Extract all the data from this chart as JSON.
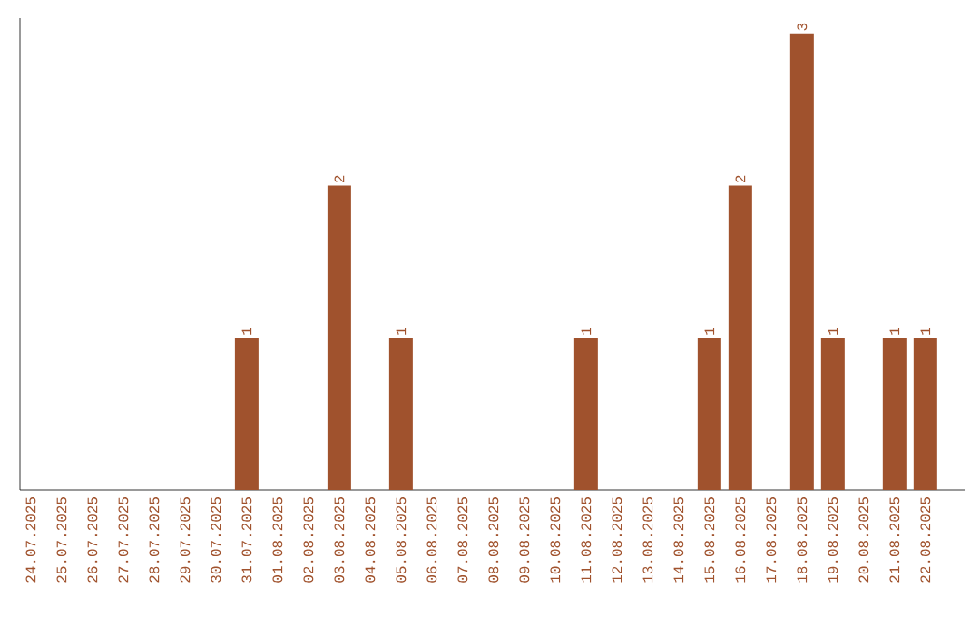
{
  "chart_data": {
    "type": "bar",
    "categories": [
      "24.07.2025",
      "25.07.2025",
      "26.07.2025",
      "27.07.2025",
      "28.07.2025",
      "29.07.2025",
      "30.07.2025",
      "31.07.2025",
      "01.08.2025",
      "02.08.2025",
      "03.08.2025",
      "04.08.2025",
      "05.08.2025",
      "06.08.2025",
      "07.08.2025",
      "08.08.2025",
      "09.08.2025",
      "10.08.2025",
      "11.08.2025",
      "12.08.2025",
      "13.08.2025",
      "14.08.2025",
      "15.08.2025",
      "16.08.2025",
      "17.08.2025",
      "18.08.2025",
      "19.08.2025",
      "20.08.2025",
      "21.08.2025",
      "22.08.2025"
    ],
    "values": [
      0,
      0,
      0,
      0,
      0,
      0,
      0,
      1,
      0,
      0,
      2,
      0,
      1,
      0,
      0,
      0,
      0,
      0,
      1,
      0,
      0,
      0,
      1,
      2,
      0,
      3,
      1,
      0,
      1,
      1
    ],
    "value_labels": [
      null,
      null,
      null,
      null,
      null,
      null,
      null,
      "1",
      null,
      null,
      "2",
      null,
      "1",
      null,
      null,
      null,
      null,
      null,
      "1",
      null,
      null,
      null,
      "1",
      "2",
      null,
      "3",
      "1",
      null,
      "1",
      "1"
    ],
    "color": "#a0522d",
    "ylim": [
      0,
      3.1
    ],
    "tick_labels": "x"
  }
}
